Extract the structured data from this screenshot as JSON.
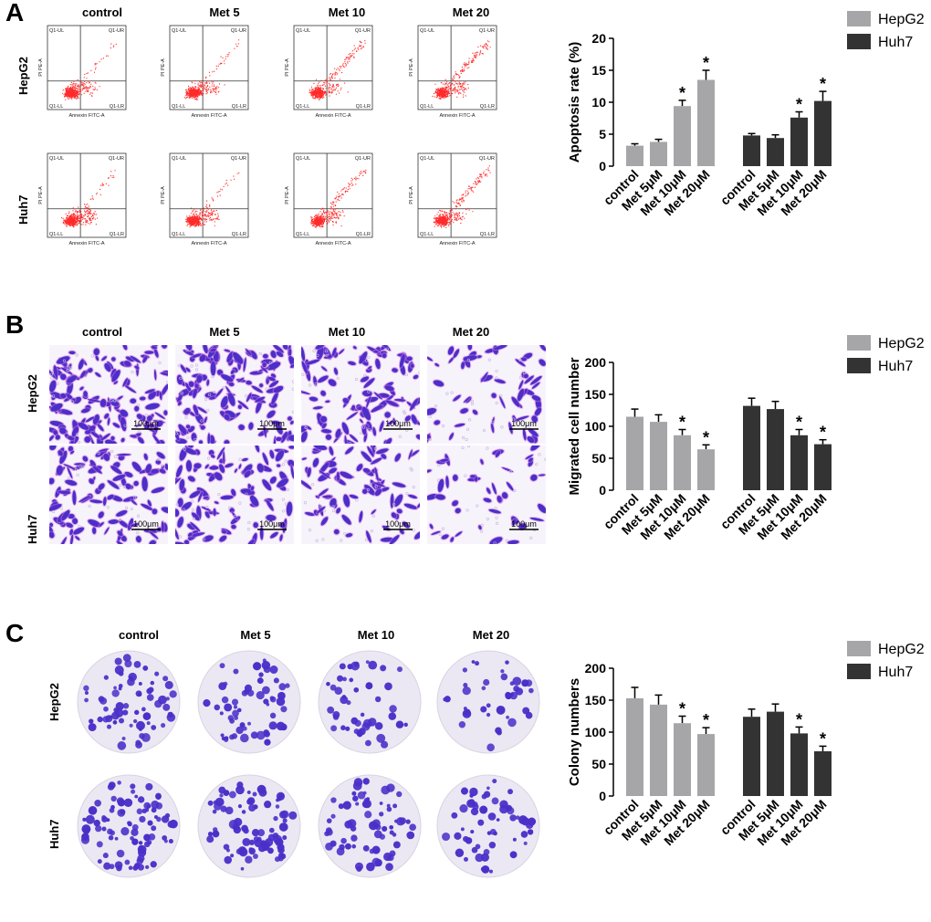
{
  "panels": {
    "A": {
      "letter": "A",
      "columns": [
        "control",
        "Met 5",
        "Met 10",
        "Met 20"
      ],
      "rows": [
        "HepG2",
        "Huh7"
      ],
      "flow_labels": {
        "ul": "Q1-UL",
        "ur": "Q1-UR",
        "ll": "Q1-LL",
        "lr": "Q1-LR",
        "xlabel": "Annexin FITC-A",
        "ylabel": "PI PE-A"
      }
    },
    "B": {
      "letter": "B",
      "columns": [
        "control",
        "Met 5",
        "Met 10",
        "Met 20"
      ],
      "rows": [
        "HepG2",
        "Huh7"
      ],
      "scale_bar": "100μm"
    },
    "C": {
      "letter": "C",
      "columns": [
        "control",
        "Met 5",
        "Met 10",
        "Met 20"
      ],
      "rows": [
        "HepG2",
        "Huh7"
      ]
    }
  },
  "colors": {
    "hepg2": "#a6a6a8",
    "huh7": "#333333",
    "facs_dot": "#ff2a2a",
    "stain": "#4b2fc9"
  },
  "chart_data": [
    {
      "type": "bar",
      "ylabel": "Apoptosis rate (%)",
      "ylim": [
        0,
        20
      ],
      "yticks": [
        0,
        5,
        10,
        15,
        20
      ],
      "categories": [
        "control",
        "Met 5μM",
        "Met 10μM",
        "Met 20μM"
      ],
      "legend": "top-right",
      "series": [
        {
          "name": "HepG2",
          "color": "#a6a6a8",
          "values": [
            3.2,
            3.8,
            9.4,
            13.5
          ],
          "errors": [
            0.3,
            0.4,
            0.9,
            1.5
          ],
          "significant": [
            false,
            false,
            true,
            true
          ]
        },
        {
          "name": "Huh7",
          "color": "#333333",
          "values": [
            4.8,
            4.4,
            7.6,
            10.2
          ],
          "errors": [
            0.3,
            0.5,
            0.9,
            1.5
          ],
          "significant": [
            false,
            false,
            true,
            true
          ]
        }
      ],
      "annotation": "*"
    },
    {
      "type": "bar",
      "ylabel": "Migrated cell number",
      "ylim": [
        0,
        200
      ],
      "yticks": [
        0,
        50,
        100,
        150,
        200
      ],
      "categories": [
        "control",
        "Met 5μM",
        "Met 10μM",
        "Met 20μM"
      ],
      "legend": "top-right",
      "series": [
        {
          "name": "HepG2",
          "color": "#a6a6a8",
          "values": [
            115,
            107,
            86,
            64
          ],
          "errors": [
            12,
            11,
            9,
            7
          ],
          "significant": [
            false,
            false,
            true,
            true
          ]
        },
        {
          "name": "Huh7",
          "color": "#333333",
          "values": [
            132,
            127,
            86,
            72
          ],
          "errors": [
            12,
            12,
            9,
            7
          ],
          "significant": [
            false,
            false,
            true,
            true
          ]
        }
      ],
      "annotation": "*"
    },
    {
      "type": "bar",
      "ylabel": "Colony numbers",
      "ylim": [
        0,
        200
      ],
      "yticks": [
        0,
        50,
        100,
        150,
        200
      ],
      "categories": [
        "control",
        "Met 5μM",
        "Met 10μM",
        "Met 20μM"
      ],
      "legend": "top-right",
      "series": [
        {
          "name": "HepG2",
          "color": "#a6a6a8",
          "values": [
            153,
            143,
            114,
            97
          ],
          "errors": [
            17,
            15,
            11,
            10
          ],
          "significant": [
            false,
            false,
            true,
            true
          ]
        },
        {
          "name": "Huh7",
          "color": "#333333",
          "values": [
            124,
            132,
            98,
            70
          ],
          "errors": [
            12,
            12,
            10,
            8
          ],
          "significant": [
            false,
            false,
            true,
            true
          ]
        }
      ],
      "annotation": "*"
    }
  ]
}
